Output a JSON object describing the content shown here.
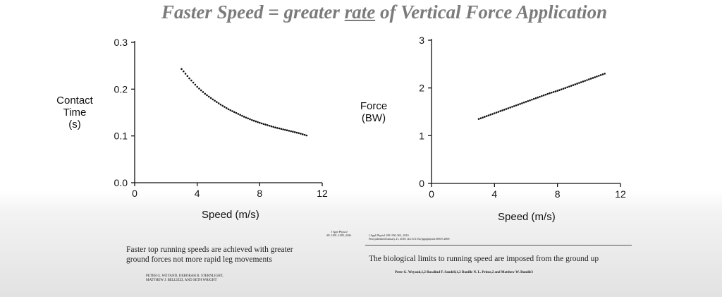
{
  "title": {
    "part1": "Faster Speed = greater ",
    "underlined": "rate",
    "part2": " of Vertical Force Application"
  },
  "chart_data": [
    {
      "type": "scatter",
      "title": "",
      "xlabel": "Speed (m/s)",
      "ylabel": [
        "Contact",
        "Time",
        "(s)"
      ],
      "xlim": [
        0,
        12
      ],
      "ylim": [
        0,
        0.3
      ],
      "xticks": [
        "0",
        "4",
        "8",
        "12"
      ],
      "yticks": [
        "0.0",
        "0.1",
        "0.2",
        "0.3"
      ],
      "x": [
        3.0,
        3.5,
        4.0,
        4.5,
        5.0,
        5.5,
        6.0,
        6.5,
        7.0,
        7.5,
        8.0,
        8.5,
        9.0,
        9.5,
        10.0,
        10.5,
        11.0
      ],
      "y": [
        0.243,
        0.223,
        0.205,
        0.19,
        0.178,
        0.167,
        0.157,
        0.149,
        0.141,
        0.134,
        0.128,
        0.123,
        0.118,
        0.114,
        0.11,
        0.106,
        0.101
      ],
      "color": "#111111"
    },
    {
      "type": "scatter",
      "title": "",
      "xlabel": "Speed (m/s)",
      "ylabel": [
        "Force",
        "(BW)"
      ],
      "xlim": [
        0,
        12
      ],
      "ylim": [
        0,
        3
      ],
      "xticks": [
        "0",
        "4",
        "8",
        "12"
      ],
      "yticks": [
        "0",
        "1",
        "2",
        "3"
      ],
      "x": [
        3.0,
        3.5,
        4.0,
        4.5,
        5.0,
        5.5,
        6.0,
        6.5,
        7.0,
        7.5,
        8.0,
        8.5,
        9.0,
        9.5,
        10.0,
        10.5,
        11.0
      ],
      "y": [
        1.35,
        1.41,
        1.47,
        1.53,
        1.59,
        1.65,
        1.71,
        1.77,
        1.83,
        1.89,
        1.94,
        2.0,
        2.06,
        2.12,
        2.18,
        2.24,
        2.3
      ],
      "color": "#111111"
    }
  ],
  "citations": {
    "left_journal": [
      "J Appl Physiol",
      "89: 1991–1999, 2000."
    ],
    "left_summary": [
      "Faster top running speeds are achieved with greater",
      "ground forces not more rapid leg movements"
    ],
    "left_authors": [
      "PETER G. WEYAND, DEBORAH B. STERNLIGHT,",
      "MATTHEW J. BELLIZZI, AND SETH WRIGHT"
    ],
    "right_journal": [
      "J Appl Physiol 108: 950–961, 2010.",
      "First published January 21, 2010; doi:10.1152/japplphysiol.00947.2009."
    ],
    "right_title": "The biological limits to running speed are imposed from the ground up",
    "right_authors": "Peter G. Weyand,1,2 Rosalind F. Sandell,1,2 Danille N. L. Prime,2 and Matthew W. Bundle3"
  }
}
